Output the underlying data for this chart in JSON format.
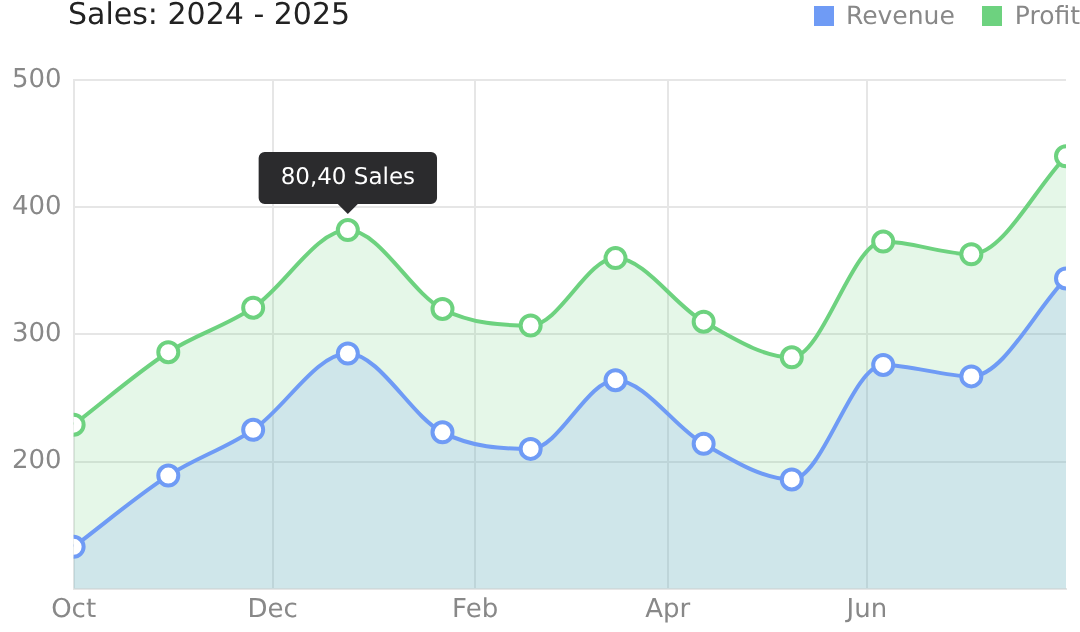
{
  "chart_data": {
    "type": "area",
    "title": "Sales: 2024 - 2025",
    "x": [
      "2024-10-01",
      "2024-10-30",
      "2024-11-25",
      "2024-12-24",
      "2025-01-22",
      "2025-02-18",
      "2025-03-16",
      "2025-04-12",
      "2025-05-09",
      "2025-06-06",
      "2025-07-03",
      "2025-08-01"
    ],
    "series": [
      {
        "name": "Revenue",
        "color": "#6f9bf5",
        "values": [
          133,
          189,
          225,
          285,
          223,
          210,
          264,
          214,
          186,
          276,
          267,
          344
        ]
      },
      {
        "name": "Profit",
        "color": "#6dd27f",
        "values": [
          229,
          286,
          321,
          382,
          320,
          307,
          360,
          310,
          282,
          373,
          363,
          440
        ]
      }
    ],
    "xlim": [
      "2024-10-01",
      "2025-08-01"
    ],
    "xticks": [
      {
        "value": "2024-10-01",
        "label": "Oct"
      },
      {
        "value": "2024-12-01",
        "label": "Dec"
      },
      {
        "value": "2025-02-01",
        "label": "Feb"
      },
      {
        "value": "2025-04-01",
        "label": "Apr"
      },
      {
        "value": "2025-06-01",
        "label": "Jun"
      }
    ],
    "ylim": [
      100,
      500
    ],
    "yticks": [
      200,
      300,
      400,
      500
    ],
    "annotations": [
      {
        "text": "80,40 Sales",
        "x": "2024-12-24",
        "y": 382
      }
    ],
    "grid": true,
    "legend": "top right",
    "marker": "circle",
    "line_style": "solid"
  }
}
